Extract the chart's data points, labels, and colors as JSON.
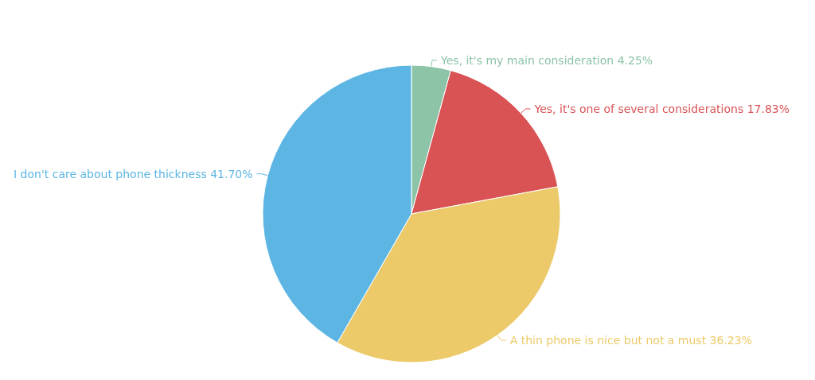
{
  "chart_data": {
    "type": "pie",
    "categories": [
      "Yes, it's my main consideration",
      "Yes, it's one of several considerations",
      "A thin phone is nice but not a must",
      "I don't care about phone thickness"
    ],
    "values": [
      4.25,
      17.83,
      36.23,
      41.7
    ],
    "colors": [
      "#8dc3a7",
      "#d95355",
      "#ecca69",
      "#5db5e3"
    ],
    "value_labels": [
      "4.25%",
      "17.83%",
      "36.23%",
      "41.70%"
    ]
  }
}
